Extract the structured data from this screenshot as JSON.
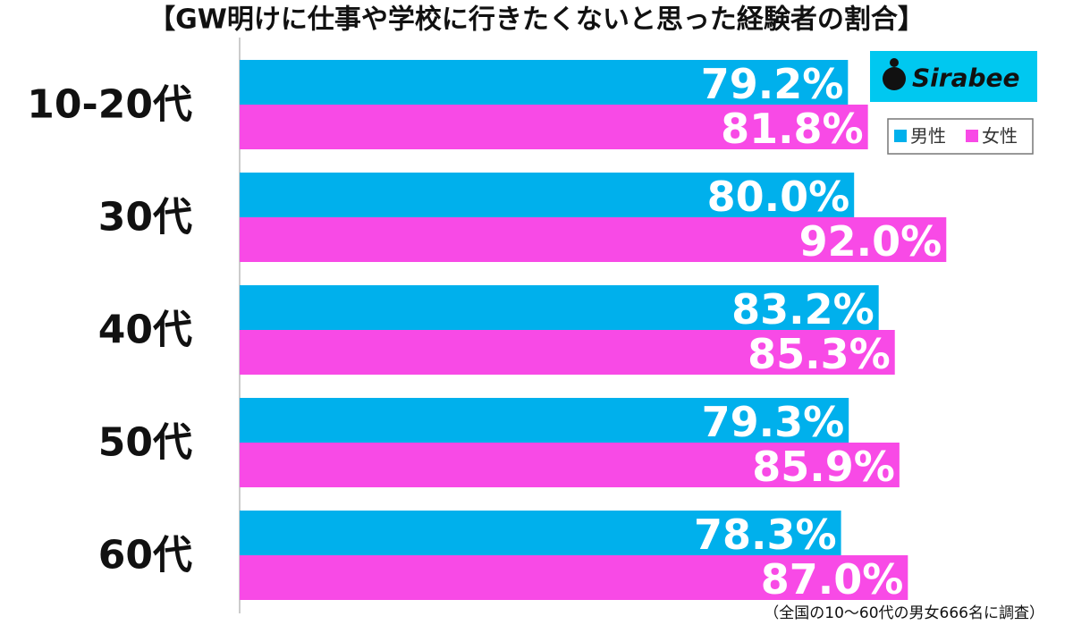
{
  "chart_data": {
    "type": "hbar",
    "title": "【GW明けに仕事や学校に行きたくないと思った経験者の割合】",
    "categories": [
      "10-20代",
      "30代",
      "40代",
      "50代",
      "60代"
    ],
    "series": [
      {
        "name": "男性",
        "color": "#00b0ec",
        "values": [
          79.2,
          80.0,
          83.2,
          79.3,
          78.3
        ],
        "value_labels": [
          "79.2%",
          "80.0%",
          "83.2%",
          "79.3%",
          "78.3%"
        ]
      },
      {
        "name": "女性",
        "color": "#f84ae6",
        "values": [
          81.8,
          92.0,
          85.3,
          85.9,
          87.0
        ],
        "value_labels": [
          "81.8%",
          "92.0%",
          "85.3%",
          "85.9%",
          "87.0%"
        ]
      }
    ],
    "xlim": [
      0,
      100
    ],
    "logo": "Sirabee",
    "footnote": "（全国の10～60代の男女666名に調査）"
  }
}
